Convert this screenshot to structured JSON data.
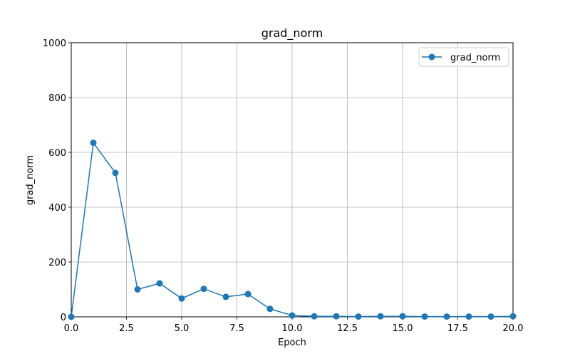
{
  "chart_data": {
    "type": "line",
    "title": "grad_norm",
    "xlabel": "Epoch",
    "ylabel": "grad_norm",
    "xlim": [
      0,
      20
    ],
    "ylim": [
      0,
      1000
    ],
    "xticks": [
      "0.0",
      "2.5",
      "5.0",
      "7.5",
      "10.0",
      "12.5",
      "15.0",
      "17.5",
      "20.0"
    ],
    "yticks": [
      "0",
      "200",
      "400",
      "600",
      "800",
      "1000"
    ],
    "grid": true,
    "legend_position": "top-right",
    "series": [
      {
        "name": "grad_norm",
        "color": "#1f77b4",
        "marker": "circle",
        "x": [
          0,
          1,
          2,
          3,
          4,
          5,
          6,
          7,
          8,
          9,
          10,
          11,
          12,
          13,
          14,
          15,
          16,
          17,
          18,
          19,
          20
        ],
        "values": [
          0,
          635,
          525,
          100,
          122,
          67,
          102,
          73,
          83,
          29,
          5,
          2,
          2,
          1,
          2,
          2,
          1,
          1,
          1,
          1,
          2
        ]
      }
    ]
  }
}
